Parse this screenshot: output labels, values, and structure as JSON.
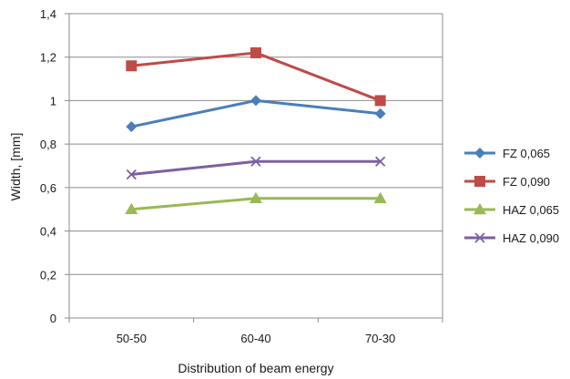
{
  "chart_data": {
    "type": "line",
    "title": "",
    "xlabel": "Distribution of beam energy",
    "ylabel": "Width, [mm]",
    "categories": [
      "50-50",
      "60-40",
      "70-30"
    ],
    "ylim": [
      0,
      1.4
    ],
    "yticks": [
      0,
      0.2,
      0.4,
      0.6,
      0.8,
      1,
      1.2,
      1.4
    ],
    "ytick_labels": [
      "0",
      "0,2",
      "0,4",
      "0,6",
      "0,8",
      "1",
      "1,2",
      "1,4"
    ],
    "grid": "horizontal",
    "legend_position": "right",
    "series": [
      {
        "name": "FZ 0,065",
        "values": [
          0.88,
          1.0,
          0.94
        ],
        "color": "#4a7ebb",
        "marker": "diamond"
      },
      {
        "name": "FZ 0,090",
        "values": [
          1.16,
          1.22,
          1.0
        ],
        "color": "#be4b48",
        "marker": "square"
      },
      {
        "name": "HAZ 0,065",
        "values": [
          0.5,
          0.55,
          0.55
        ],
        "color": "#98b954",
        "marker": "triangle"
      },
      {
        "name": "HAZ 0,090",
        "values": [
          0.66,
          0.72,
          0.72
        ],
        "color": "#7d60a0",
        "marker": "x"
      }
    ]
  }
}
